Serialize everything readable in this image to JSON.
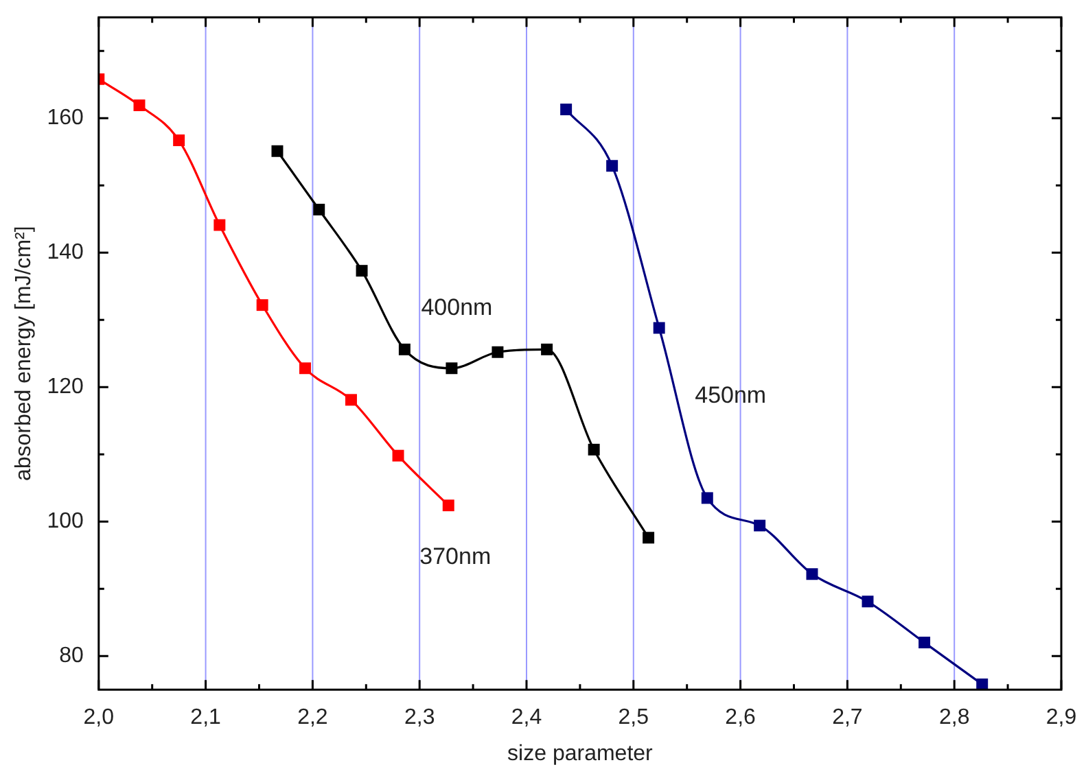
{
  "chart_data": {
    "type": "line",
    "xlabel": "size parameter",
    "ylabel": "absorbed energy [mJ/cm²]",
    "xlim": [
      2.0,
      2.9
    ],
    "ylim": [
      75,
      175
    ],
    "xticks": [
      {
        "value": 2.0,
        "label": "2,0"
      },
      {
        "value": 2.05,
        "label": null
      },
      {
        "value": 2.1,
        "label": "2,1"
      },
      {
        "value": 2.15,
        "label": null
      },
      {
        "value": 2.2,
        "label": "2,2"
      },
      {
        "value": 2.25,
        "label": null
      },
      {
        "value": 2.3,
        "label": "2,3"
      },
      {
        "value": 2.35,
        "label": null
      },
      {
        "value": 2.4,
        "label": "2,4"
      },
      {
        "value": 2.45,
        "label": null
      },
      {
        "value": 2.5,
        "label": "2,5"
      },
      {
        "value": 2.55,
        "label": null
      },
      {
        "value": 2.6,
        "label": "2,6"
      },
      {
        "value": 2.65,
        "label": null
      },
      {
        "value": 2.7,
        "label": "2,7"
      },
      {
        "value": 2.75,
        "label": null
      },
      {
        "value": 2.8,
        "label": "2,8"
      },
      {
        "value": 2.85,
        "label": null
      },
      {
        "value": 2.9,
        "label": "2,9"
      }
    ],
    "yticks": [
      80,
      {
        "value": 90,
        "label": null
      },
      100,
      {
        "value": 110,
        "label": null
      },
      120,
      {
        "value": 130,
        "label": null
      },
      140,
      {
        "value": 150,
        "label": null
      },
      160,
      {
        "value": 170,
        "label": null
      }
    ],
    "grid": "x",
    "marker": "square",
    "line_style": "solid",
    "legend": false,
    "series": [
      {
        "name": "370nm",
        "color": "#ff0000",
        "x": [
          2.0,
          2.038,
          2.075,
          2.113,
          2.153,
          2.193,
          2.236,
          2.28,
          2.327
        ],
        "values": [
          165.8,
          161.9,
          156.7,
          144.1,
          132.2,
          122.8,
          118.1,
          109.8,
          102.4
        ]
      },
      {
        "name": "400nm",
        "color": "#000000",
        "x": [
          2.167,
          2.206,
          2.246,
          2.286,
          2.33,
          2.373,
          2.419,
          2.463,
          2.514
        ],
        "values": [
          155.1,
          146.4,
          137.3,
          125.6,
          122.8,
          125.2,
          125.6,
          110.7,
          97.6
        ]
      },
      {
        "name": "450nm",
        "color": "#000080",
        "x": [
          2.437,
          2.48,
          2.524,
          2.569,
          2.618,
          2.667,
          2.719,
          2.772,
          2.826
        ],
        "values": [
          161.3,
          152.9,
          128.8,
          103.5,
          99.4,
          92.2,
          88.1,
          82.0,
          75.8
        ]
      }
    ]
  }
}
